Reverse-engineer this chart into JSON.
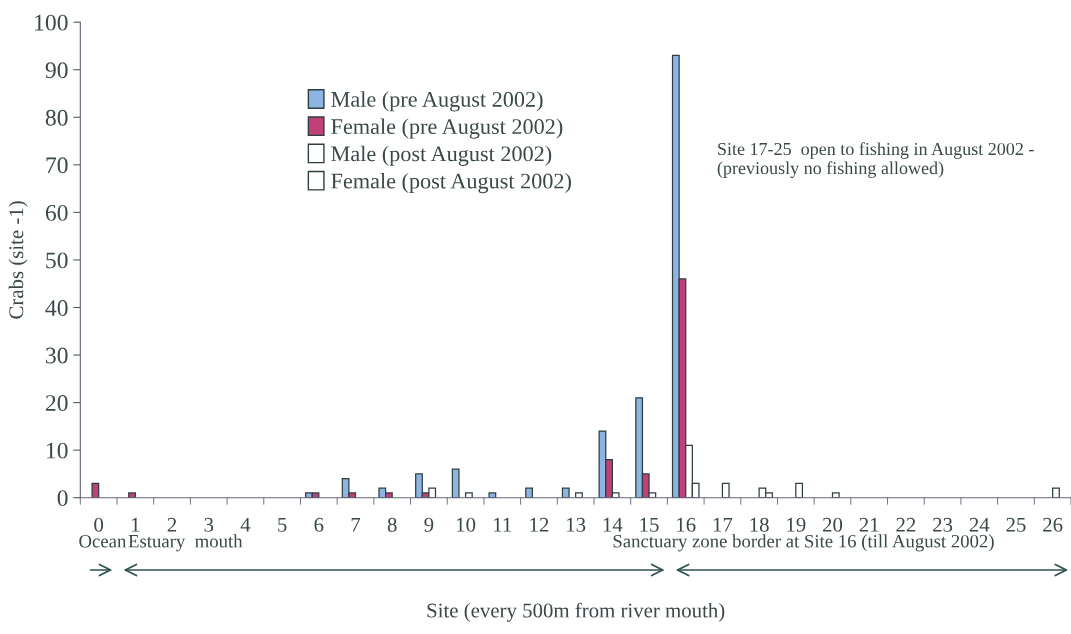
{
  "chart_data": {
    "type": "bar",
    "xlabel": "Site (every 500m from river mouth)",
    "ylabel": "Crabs (site -1)",
    "categories": [
      "0",
      "1",
      "2",
      "3",
      "4",
      "5",
      "6",
      "7",
      "8",
      "9",
      "10",
      "11",
      "12",
      "13",
      "14",
      "15",
      "16",
      "17",
      "18",
      "19",
      "20",
      "21",
      "22",
      "23",
      "24",
      "25",
      "26"
    ],
    "series": [
      {
        "name": "Male (pre August 2002)",
        "color": "#8db4e2",
        "values": [
          0,
          0,
          0,
          0,
          0,
          0,
          1,
          4,
          2,
          5,
          6,
          1,
          2,
          2,
          14,
          21,
          93,
          0,
          0,
          0,
          0,
          0,
          0,
          0,
          0,
          0,
          0
        ]
      },
      {
        "name": "Female (pre August 2002)",
        "color": "#c0407a",
        "values": [
          3,
          1,
          0,
          0,
          0,
          0,
          1,
          1,
          1,
          1,
          0,
          0,
          0,
          0,
          8,
          5,
          46,
          0,
          0,
          0,
          0,
          0,
          0,
          0,
          0,
          0,
          0
        ]
      },
      {
        "name": "Male (post August 2002)",
        "color": "#ffffff",
        "values": [
          0,
          0,
          0,
          0,
          0,
          0,
          0,
          0,
          0,
          2,
          1,
          0,
          0,
          1,
          1,
          1,
          11,
          3,
          2,
          3,
          1,
          0,
          0,
          0,
          0,
          0,
          2
        ]
      },
      {
        "name": "Female (post August 2002)",
        "color": "#ffffff",
        "values": [
          0,
          0,
          0,
          0,
          0,
          0,
          0,
          0,
          0,
          0,
          0,
          0,
          0,
          0,
          0,
          0,
          3,
          0,
          1,
          0,
          0,
          0,
          0,
          0,
          0,
          0,
          0
        ]
      }
    ],
    "ylim": [
      0,
      100
    ],
    "yticks": [
      0,
      10,
      20,
      30,
      40,
      50,
      60,
      70,
      80,
      90,
      100
    ],
    "legend": "top left",
    "grid": false,
    "annotations": [
      "Site 17-25  open to fishing in August 2002 -\n(previously no fishing allowed)",
      "Ocean",
      "Estuary  mouth",
      "Sanctuary zone border at Site 16 (till August 2002)"
    ]
  }
}
